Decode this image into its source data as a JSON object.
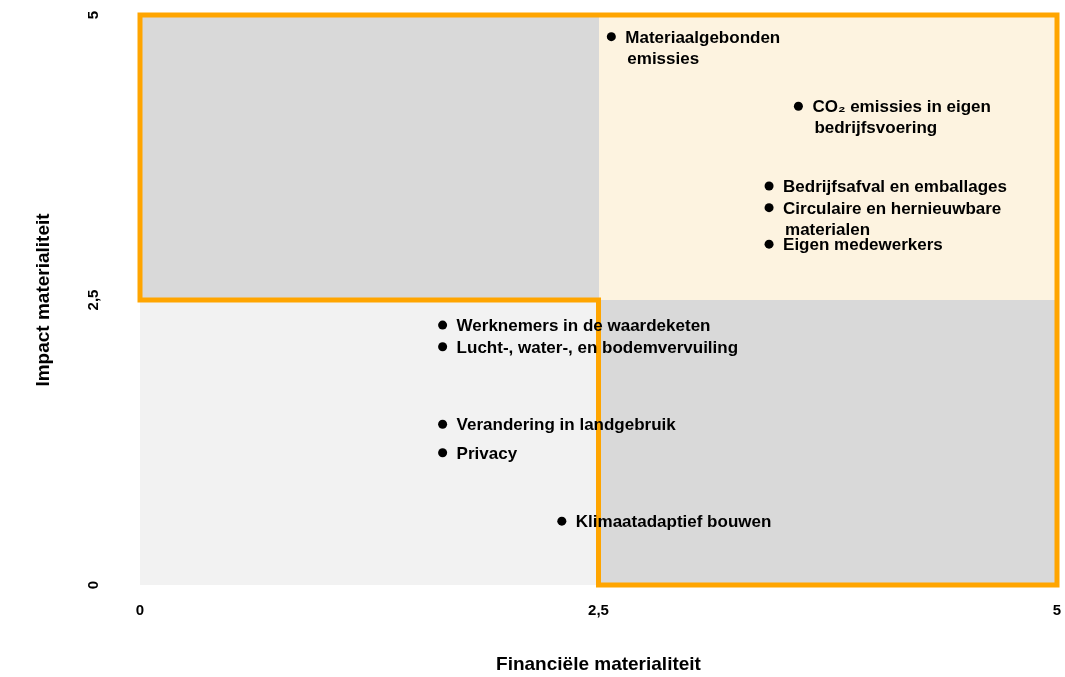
{
  "chart_data": {
    "type": "scatter",
    "xlabel": "Financiële materialiteit",
    "ylabel": "Impact materialiteit",
    "xlim": [
      0,
      5
    ],
    "ylim": [
      0,
      5
    ],
    "xticks": [
      0,
      {
        "value": 2.5,
        "label": "2,5"
      },
      5
    ],
    "yticks": [
      0,
      {
        "value": 2.5,
        "label": "2,5"
      },
      5
    ],
    "grid": false,
    "legend": false,
    "marker": "circle",
    "series": [
      {
        "color": "#000000",
        "x": [
          2.57,
          3.59,
          3.43,
          3.43,
          3.43,
          1.65,
          1.65,
          1.65,
          1.65,
          2.3
        ],
        "values": [
          4.81,
          4.2,
          3.5,
          3.31,
          2.99,
          2.28,
          2.09,
          1.41,
          1.16,
          0.56
        ]
      }
    ],
    "annotations": [
      {
        "text": "Materiaalgebonden\nemissies",
        "x": 2.57,
        "y": 4.81
      },
      {
        "text": "CO₂ emissies in eigen\nbedrijfsvoering",
        "x": 3.59,
        "y": 4.2
      },
      {
        "text": "Bedrijfsafval en emballages",
        "x": 3.43,
        "y": 3.5
      },
      {
        "text": "Circulaire en hernieuwbare\nmaterialen",
        "x": 3.43,
        "y": 3.31
      },
      {
        "text": "Eigen medewerkers",
        "x": 3.43,
        "y": 2.99
      },
      {
        "text": "Werknemers in de waardeketen",
        "x": 1.65,
        "y": 2.28
      },
      {
        "text": "Lucht-, water-, en bodemvervuiling",
        "x": 1.65,
        "y": 2.09
      },
      {
        "text": "Verandering in landgebruik",
        "x": 1.65,
        "y": 1.41
      },
      {
        "text": "Privacy",
        "x": 1.65,
        "y": 1.16
      },
      {
        "text": "Klimaatadaptief bouwen",
        "x": 2.3,
        "y": 0.56
      }
    ]
  }
}
